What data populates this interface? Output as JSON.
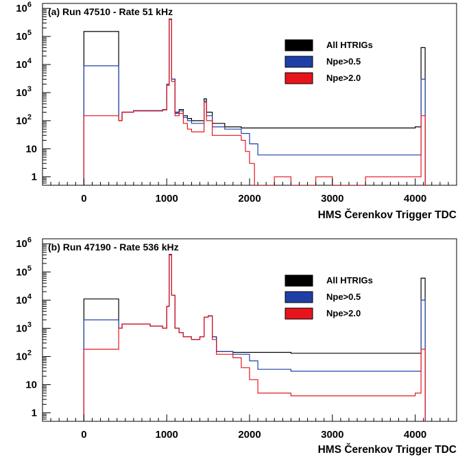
{
  "chart_data": [
    {
      "type": "histogram",
      "title": "(a) Run 47510 - Rate 51 kHz",
      "xlabel": "HMS Čerenkov Trigger TDC",
      "ylabel": "",
      "x_scale": "linear",
      "y_scale": "log",
      "xlim": [
        -500,
        4500
      ],
      "ylim": [
        0.5,
        1500000
      ],
      "x_ticks": [
        0,
        1000,
        2000,
        3000,
        4000
      ],
      "x_tick_labels": [
        "0",
        "1000",
        "2000",
        "3000",
        "4000"
      ],
      "y_ticks": [
        1,
        10,
        100,
        1000,
        10000,
        100000,
        1000000
      ],
      "y_tick_labels": [
        {
          "base": "1",
          "exp": ""
        },
        {
          "base": "10",
          "exp": ""
        },
        {
          "base": "10",
          "exp": "2"
        },
        {
          "base": "10",
          "exp": "3"
        },
        {
          "base": "10",
          "exp": "4"
        },
        {
          "base": "10",
          "exp": "5"
        },
        {
          "base": "10",
          "exp": "6"
        }
      ],
      "legend": {
        "position": "top-right",
        "entries": [
          "All HTRIGs",
          "Npe>0.5",
          "Npe>2.0"
        ]
      },
      "series": [
        {
          "name": "All HTRIGs",
          "color": "#000000",
          "points": [
            [
              0,
              150000
            ],
            [
              420,
              100
            ],
            [
              460,
              200
            ],
            [
              600,
              230
            ],
            [
              800,
              230
            ],
            [
              950,
              250
            ],
            [
              1000,
              2000
            ],
            [
              1030,
              420000
            ],
            [
              1060,
              3000
            ],
            [
              1100,
              200
            ],
            [
              1150,
              250
            ],
            [
              1200,
              150
            ],
            [
              1250,
              120
            ],
            [
              1300,
              100
            ],
            [
              1400,
              100
            ],
            [
              1450,
              600
            ],
            [
              1480,
              200
            ],
            [
              1550,
              80
            ],
            [
              1700,
              60
            ],
            [
              1900,
              55
            ],
            [
              2100,
              55
            ],
            [
              2500,
              55
            ],
            [
              3000,
              55
            ],
            [
              3500,
              55
            ],
            [
              4000,
              60
            ],
            [
              4070,
              40000
            ]
          ]
        },
        {
          "name": "Npe>0.5",
          "color": "#1f3fa8",
          "points": [
            [
              0,
              9000
            ],
            [
              420,
              100
            ],
            [
              460,
              200
            ],
            [
              600,
              230
            ],
            [
              800,
              230
            ],
            [
              950,
              250
            ],
            [
              1000,
              2000
            ],
            [
              1030,
              420000
            ],
            [
              1060,
              3000
            ],
            [
              1100,
              180
            ],
            [
              1150,
              220
            ],
            [
              1200,
              130
            ],
            [
              1250,
              100
            ],
            [
              1300,
              80
            ],
            [
              1400,
              80
            ],
            [
              1450,
              500
            ],
            [
              1480,
              150
            ],
            [
              1550,
              60
            ],
            [
              1700,
              50
            ],
            [
              1900,
              35
            ],
            [
              2000,
              15
            ],
            [
              2100,
              6
            ],
            [
              2500,
              6
            ],
            [
              3000,
              6
            ],
            [
              3500,
              6
            ],
            [
              4000,
              6
            ],
            [
              4070,
              3000
            ]
          ]
        },
        {
          "name": "Npe>2.0",
          "color": "#e8141c",
          "points": [
            [
              0,
              150
            ],
            [
              420,
              100
            ],
            [
              460,
              200
            ],
            [
              600,
              220
            ],
            [
              800,
              220
            ],
            [
              950,
              240
            ],
            [
              1000,
              1800
            ],
            [
              1030,
              400000
            ],
            [
              1060,
              2500
            ],
            [
              1100,
              150
            ],
            [
              1150,
              180
            ],
            [
              1200,
              80
            ],
            [
              1250,
              50
            ],
            [
              1300,
              40
            ],
            [
              1400,
              40
            ],
            [
              1450,
              450
            ],
            [
              1480,
              100
            ],
            [
              1550,
              30
            ],
            [
              1700,
              30
            ],
            [
              1900,
              20
            ],
            [
              1950,
              8
            ],
            [
              2000,
              3
            ],
            [
              2060,
              0.5
            ],
            [
              2300,
              1
            ],
            [
              2500,
              0.5
            ],
            [
              2800,
              1
            ],
            [
              3000,
              0.5
            ],
            [
              3400,
              1
            ],
            [
              3700,
              1
            ],
            [
              4000,
              1
            ],
            [
              4070,
              150
            ]
          ]
        }
      ]
    },
    {
      "type": "histogram",
      "title": "(b) Run 47190 - Rate 536 kHz",
      "xlabel": "HMS Čerenkov Trigger TDC",
      "ylabel": "",
      "x_scale": "linear",
      "y_scale": "log",
      "xlim": [
        -500,
        4500
      ],
      "ylim": [
        0.5,
        1500000
      ],
      "x_ticks": [
        0,
        1000,
        2000,
        3000,
        4000
      ],
      "x_tick_labels": [
        "0",
        "1000",
        "2000",
        "3000",
        "4000"
      ],
      "y_ticks": [
        1,
        10,
        100,
        1000,
        10000,
        100000,
        1000000
      ],
      "y_tick_labels": [
        {
          "base": "1",
          "exp": ""
        },
        {
          "base": "10",
          "exp": ""
        },
        {
          "base": "10",
          "exp": "2"
        },
        {
          "base": "10",
          "exp": "3"
        },
        {
          "base": "10",
          "exp": "4"
        },
        {
          "base": "10",
          "exp": "5"
        },
        {
          "base": "10",
          "exp": "6"
        }
      ],
      "legend": {
        "position": "top-right",
        "entries": [
          "All HTRIGs",
          "Npe>0.5",
          "Npe>2.0"
        ]
      },
      "series": [
        {
          "name": "All HTRIGs",
          "color": "#000000",
          "points": [
            [
              0,
              11000
            ],
            [
              420,
              1000
            ],
            [
              460,
              1400
            ],
            [
              600,
              1400
            ],
            [
              800,
              1200
            ],
            [
              950,
              1000
            ],
            [
              1000,
              6000
            ],
            [
              1030,
              420000
            ],
            [
              1060,
              15000
            ],
            [
              1100,
              1000
            ],
            [
              1150,
              700
            ],
            [
              1200,
              500
            ],
            [
              1300,
              400
            ],
            [
              1400,
              500
            ],
            [
              1450,
              2500
            ],
            [
              1500,
              2800
            ],
            [
              1550,
              500
            ],
            [
              1600,
              150
            ],
            [
              1800,
              140
            ],
            [
              2000,
              140
            ],
            [
              2500,
              130
            ],
            [
              3000,
              130
            ],
            [
              3500,
              130
            ],
            [
              4000,
              130
            ],
            [
              4070,
              60000
            ]
          ]
        },
        {
          "name": "Npe>0.5",
          "color": "#1f3fa8",
          "points": [
            [
              0,
              2000
            ],
            [
              420,
              1000
            ],
            [
              460,
              1400
            ],
            [
              600,
              1400
            ],
            [
              800,
              1200
            ],
            [
              950,
              1000
            ],
            [
              1000,
              6000
            ],
            [
              1030,
              420000
            ],
            [
              1060,
              15000
            ],
            [
              1100,
              1000
            ],
            [
              1150,
              700
            ],
            [
              1200,
              500
            ],
            [
              1300,
              400
            ],
            [
              1400,
              500
            ],
            [
              1450,
              2500
            ],
            [
              1500,
              2800
            ],
            [
              1550,
              500
            ],
            [
              1600,
              150
            ],
            [
              1800,
              120
            ],
            [
              2000,
              70
            ],
            [
              2100,
              35
            ],
            [
              2500,
              30
            ],
            [
              3000,
              30
            ],
            [
              3500,
              30
            ],
            [
              4000,
              30
            ],
            [
              4070,
              10000
            ]
          ]
        },
        {
          "name": "Npe>2.0",
          "color": "#e8141c",
          "points": [
            [
              0,
              180
            ],
            [
              420,
              1000
            ],
            [
              460,
              1400
            ],
            [
              600,
              1400
            ],
            [
              800,
              1200
            ],
            [
              950,
              1000
            ],
            [
              1000,
              6000
            ],
            [
              1030,
              400000
            ],
            [
              1060,
              15000
            ],
            [
              1100,
              1000
            ],
            [
              1150,
              700
            ],
            [
              1200,
              500
            ],
            [
              1300,
              400
            ],
            [
              1400,
              500
            ],
            [
              1450,
              2500
            ],
            [
              1500,
              2700
            ],
            [
              1550,
              400
            ],
            [
              1600,
              120
            ],
            [
              1800,
              90
            ],
            [
              1900,
              40
            ],
            [
              2000,
              15
            ],
            [
              2100,
              5
            ],
            [
              2500,
              4
            ],
            [
              3000,
              4
            ],
            [
              3500,
              4
            ],
            [
              4000,
              5
            ],
            [
              4070,
              180
            ]
          ]
        }
      ]
    }
  ]
}
